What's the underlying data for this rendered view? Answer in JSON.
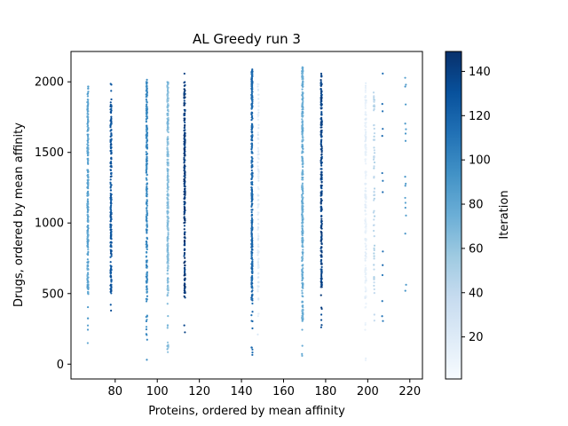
{
  "chart_data": {
    "type": "scatter",
    "title": "AL Greedy run 3",
    "xlabel": "Proteins, ordered by mean affinity",
    "ylabel": "Drugs, ordered by mean affinity",
    "xlim": [
      59,
      226
    ],
    "ylim": [
      -105,
      2215
    ],
    "xticks": [
      80,
      100,
      120,
      140,
      160,
      180,
      200,
      220
    ],
    "yticks": [
      0,
      500,
      1000,
      1500,
      2000
    ],
    "colorbar": {
      "label": "Iteration",
      "range": [
        1,
        149
      ],
      "ticks": [
        20,
        40,
        60,
        80,
        100,
        120,
        140
      ],
      "colormap": "Blues",
      "colors": [
        "#f7fbff",
        "#deebf7",
        "#c6dbef",
        "#9ecae1",
        "#6baed6",
        "#4292c6",
        "#2171b5",
        "#08519c",
        "#08306b"
      ]
    },
    "columns": [
      {
        "x": 67,
        "ymin": 88,
        "ymax": 1995,
        "dense_min": 500,
        "dense_max": 1980,
        "iteration": 82,
        "count": 260
      },
      {
        "x": 78,
        "ymin": 235,
        "ymax": 2085,
        "dense_min": 500,
        "dense_max": 1880,
        "iteration": 128,
        "count": 220
      },
      {
        "x": 95,
        "ymin": 20,
        "ymax": 2095,
        "dense_min": 440,
        "dense_max": 2000,
        "iteration": 98,
        "count": 280
      },
      {
        "x": 105,
        "ymin": 10,
        "ymax": 2050,
        "dense_min": 480,
        "dense_max": 2000,
        "iteration": 66,
        "count": 300
      },
      {
        "x": 113,
        "ymin": 120,
        "ymax": 2085,
        "dense_min": 500,
        "dense_max": 2000,
        "iteration": 142,
        "count": 230
      },
      {
        "x": 145,
        "ymin": 10,
        "ymax": 2105,
        "dense_min": 450,
        "dense_max": 2090,
        "iteration": 118,
        "count": 340
      },
      {
        "x": 148,
        "ymin": 180,
        "ymax": 2040,
        "dense_min": 500,
        "dense_max": 2000,
        "iteration": 18,
        "count": 120
      },
      {
        "x": 169,
        "ymin": 10,
        "ymax": 2105,
        "dense_min": 300,
        "dense_max": 2100,
        "iteration": 76,
        "count": 340
      },
      {
        "x": 178,
        "ymin": 235,
        "ymax": 2105,
        "dense_min": 540,
        "dense_max": 2060,
        "iteration": 138,
        "count": 260
      },
      {
        "x": 199,
        "ymin": 10,
        "ymax": 2085,
        "dense_min": 400,
        "dense_max": 2000,
        "iteration": 14,
        "count": 200
      },
      {
        "x": 203,
        "ymin": 300,
        "ymax": 2010,
        "dense_min": 500,
        "dense_max": 1950,
        "iteration": 45,
        "count": 70
      },
      {
        "x": 207,
        "ymin": 230,
        "ymax": 2120,
        "dense_min": 230,
        "dense_max": 2120,
        "iteration": 112,
        "count": 14
      },
      {
        "x": 218,
        "ymin": 400,
        "ymax": 2090,
        "dense_min": 400,
        "dense_max": 2090,
        "iteration": 88,
        "count": 18
      }
    ]
  }
}
